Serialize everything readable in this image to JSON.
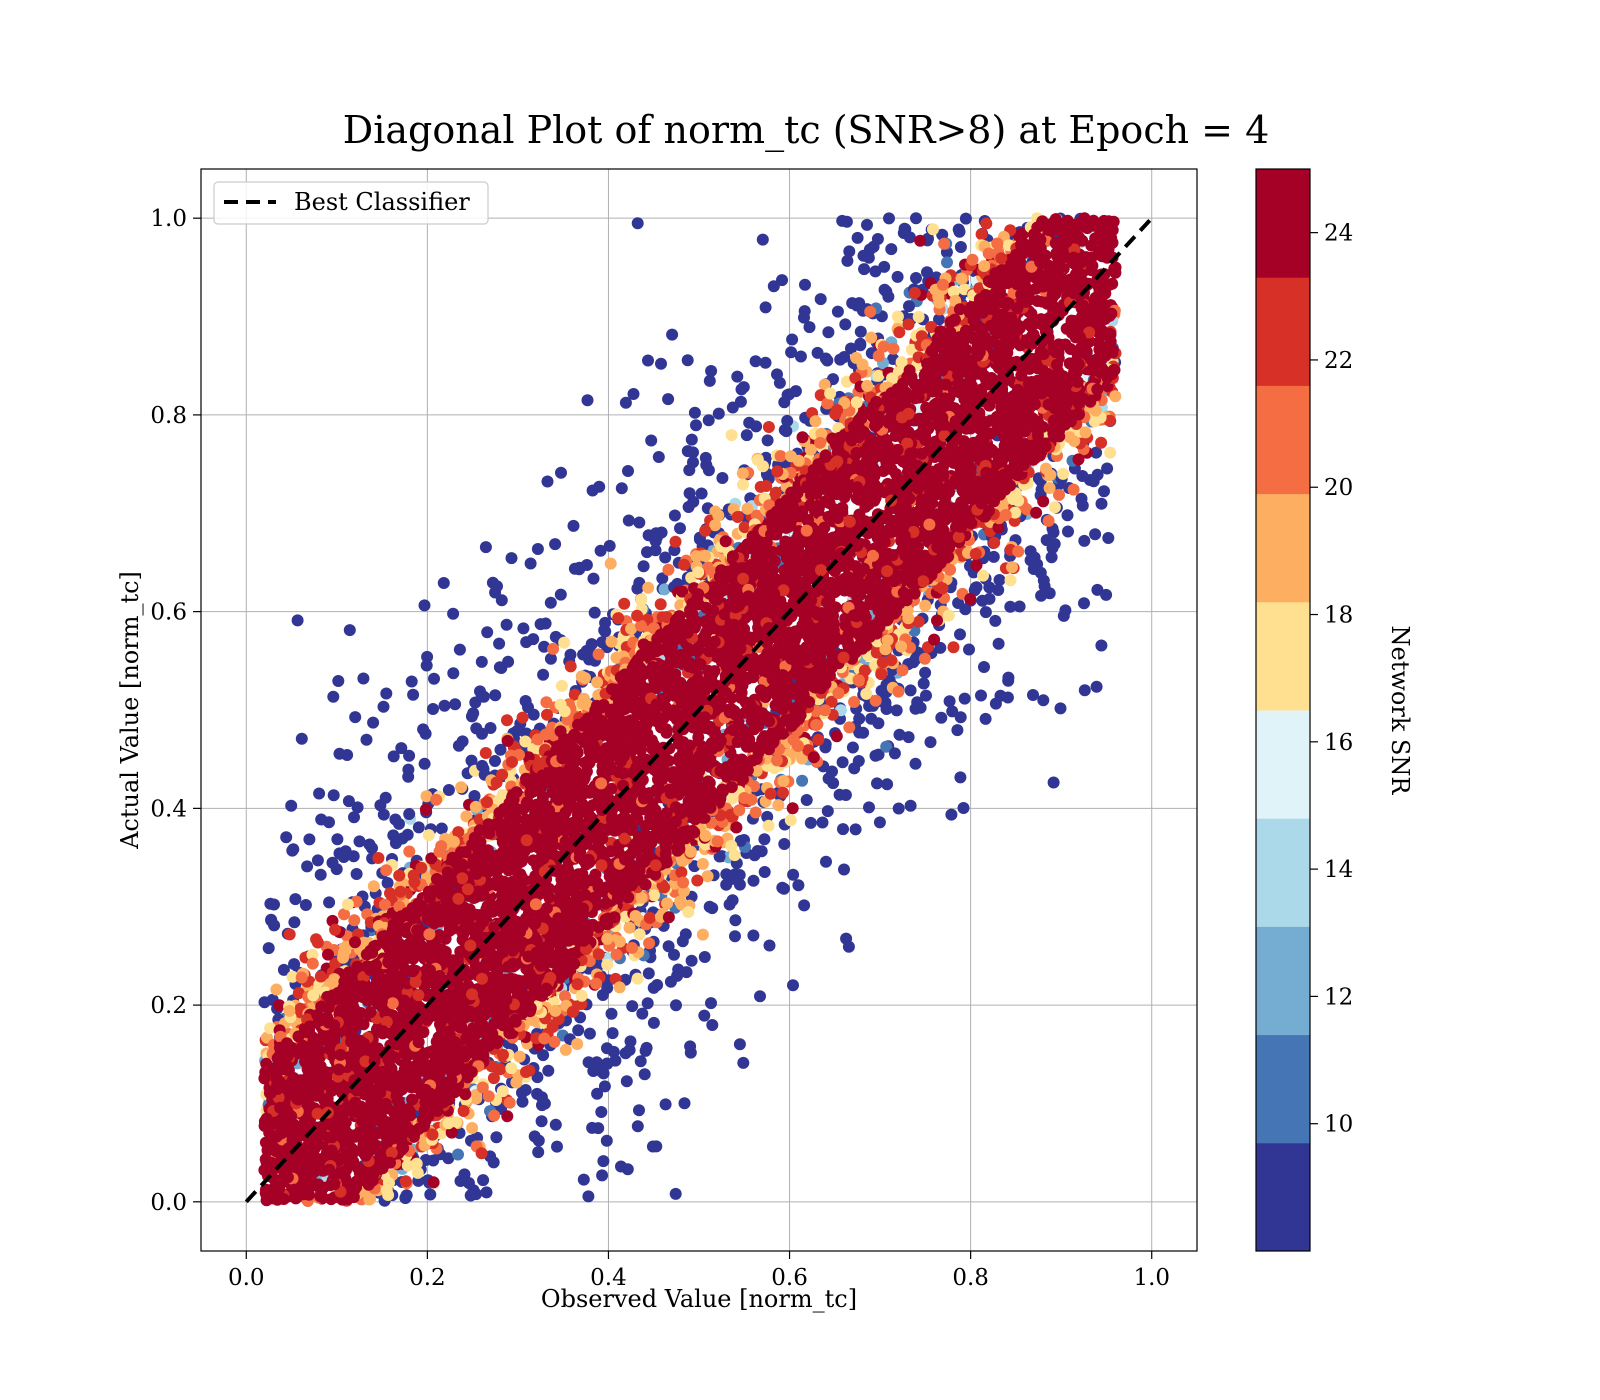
{
  "chart_data": {
    "type": "scatter",
    "title": "Diagonal Plot of norm_tc (SNR>8) at Epoch = 4",
    "xlabel": "Observed Value [norm_tc]",
    "ylabel": "Actual Value [norm_tc]",
    "xlim": [
      -0.05,
      1.05
    ],
    "ylim": [
      -0.05,
      1.05
    ],
    "xticks": [
      "0.0",
      "0.2",
      "0.4",
      "0.6",
      "0.8",
      "1.0"
    ],
    "yticks": [
      "0.0",
      "0.2",
      "0.4",
      "0.6",
      "0.8",
      "1.0"
    ],
    "grid": true,
    "legend": {
      "placement": "upper-left",
      "entries": [
        {
          "label": "Best Classifier",
          "style": "dashed",
          "color": "#000000"
        }
      ]
    },
    "reference_line": {
      "name": "Best Classifier",
      "x": [
        0,
        1
      ],
      "y": [
        0,
        1
      ]
    },
    "colorbar": {
      "label": "Network SNR",
      "range": [
        8,
        25
      ],
      "ticks": [
        "10",
        "12",
        "14",
        "16",
        "18",
        "20",
        "22",
        "24"
      ],
      "colormap": "RdYlBu_r (discrete, 10 bins)",
      "colors": [
        "#313695",
        "#4575b4",
        "#74add1",
        "#abd9e9",
        "#e0f3f8",
        "#fee090",
        "#fdae61",
        "#f46d43",
        "#d73027",
        "#a50026"
      ]
    },
    "series": [
      {
        "points_description_values": {
          "x_range": [
            0.02,
            0.96
          ],
          "y_range": [
            0.0,
            1.0
          ],
          "high_snr_band_halfwidth": 0.12,
          "point_count_estimate": 12000
        }
      }
    ]
  }
}
